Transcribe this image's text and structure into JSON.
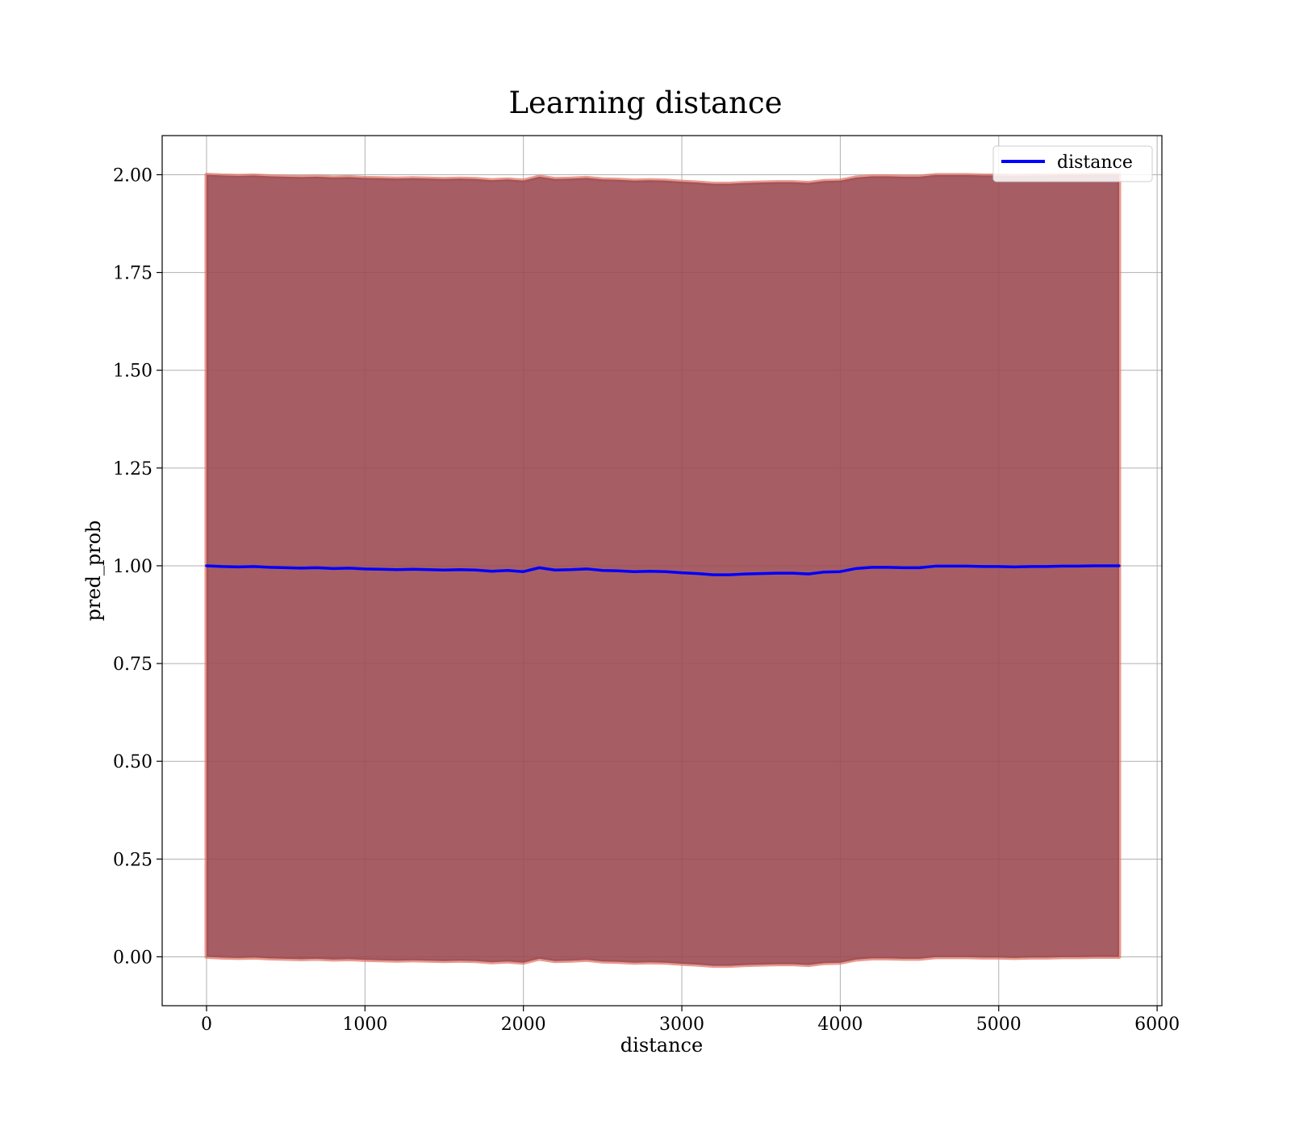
{
  "chart_data": {
    "type": "line",
    "title": "Learning distance",
    "xlabel": "distance",
    "ylabel": "pred_prob",
    "xlim": [
      -280,
      6030
    ],
    "ylim": [
      -0.125,
      2.1
    ],
    "xticks": [
      0,
      1000,
      2000,
      3000,
      4000,
      5000,
      6000
    ],
    "yticks": [
      0.0,
      0.25,
      0.5,
      0.75,
      1.0,
      1.25,
      1.5,
      1.75,
      2.0
    ],
    "xtick_labels": [
      "0",
      "1000",
      "2000",
      "3000",
      "4000",
      "5000",
      "6000"
    ],
    "ytick_labels": [
      "0.00",
      "0.25",
      "0.50",
      "0.75",
      "1.00",
      "1.25",
      "1.50",
      "1.75",
      "2.00"
    ],
    "grid": true,
    "legend": {
      "placement": "top-right",
      "entries": [
        "distance"
      ]
    },
    "colors": {
      "line": "#0000ff",
      "band_inner": "#7a3b4c",
      "band_outer": "#e07060"
    },
    "series": [
      {
        "name": "distance",
        "x": [
          0,
          100,
          200,
          300,
          400,
          500,
          600,
          700,
          800,
          900,
          1000,
          1100,
          1200,
          1300,
          1400,
          1500,
          1600,
          1700,
          1800,
          1900,
          2000,
          2100,
          2200,
          2300,
          2400,
          2500,
          2600,
          2700,
          2800,
          2900,
          3000,
          3100,
          3200,
          3300,
          3400,
          3500,
          3600,
          3700,
          3800,
          3900,
          4000,
          4100,
          4200,
          4300,
          4400,
          4500,
          4600,
          4700,
          4800,
          4900,
          5000,
          5100,
          5200,
          5300,
          5400,
          5500,
          5600,
          5700,
          5760
        ],
        "values": [
          1.0,
          0.998,
          0.997,
          0.998,
          0.996,
          0.995,
          0.994,
          0.995,
          0.993,
          0.994,
          0.992,
          0.991,
          0.99,
          0.991,
          0.99,
          0.989,
          0.99,
          0.989,
          0.986,
          0.988,
          0.985,
          0.995,
          0.989,
          0.99,
          0.992,
          0.988,
          0.987,
          0.985,
          0.986,
          0.985,
          0.982,
          0.98,
          0.977,
          0.977,
          0.979,
          0.98,
          0.981,
          0.981,
          0.979,
          0.984,
          0.985,
          0.993,
          0.996,
          0.996,
          0.995,
          0.995,
          0.999,
          0.999,
          0.999,
          0.998,
          0.998,
          0.997,
          0.998,
          0.998,
          0.999,
          0.999,
          1.0,
          1.0,
          1.0
        ],
        "upper": [
          2.0,
          1.998,
          1.997,
          1.998,
          1.996,
          1.995,
          1.994,
          1.995,
          1.993,
          1.994,
          1.992,
          1.991,
          1.99,
          1.991,
          1.99,
          1.989,
          1.99,
          1.989,
          1.986,
          1.988,
          1.985,
          1.995,
          1.989,
          1.99,
          1.992,
          1.988,
          1.987,
          1.985,
          1.986,
          1.985,
          1.982,
          1.98,
          1.977,
          1.977,
          1.979,
          1.98,
          1.981,
          1.981,
          1.979,
          1.984,
          1.985,
          1.993,
          1.996,
          1.996,
          1.995,
          1.995,
          1.999,
          1.999,
          1.999,
          1.998,
          1.998,
          1.997,
          1.998,
          1.998,
          1.999,
          1.999,
          2.0,
          2.0,
          2.0
        ],
        "lower": [
          0.0,
          -0.002,
          -0.003,
          -0.002,
          -0.004,
          -0.005,
          -0.006,
          -0.005,
          -0.007,
          -0.006,
          -0.008,
          -0.009,
          -0.01,
          -0.009,
          -0.01,
          -0.011,
          -0.01,
          -0.011,
          -0.014,
          -0.012,
          -0.015,
          -0.005,
          -0.011,
          -0.01,
          -0.008,
          -0.012,
          -0.013,
          -0.015,
          -0.014,
          -0.015,
          -0.018,
          -0.02,
          -0.023,
          -0.023,
          -0.021,
          -0.02,
          -0.019,
          -0.019,
          -0.021,
          -0.016,
          -0.015,
          -0.007,
          -0.004,
          -0.004,
          -0.005,
          -0.005,
          -0.001,
          -0.001,
          -0.001,
          -0.002,
          -0.002,
          -0.003,
          -0.002,
          -0.002,
          -0.001,
          -0.001,
          0.0,
          0.0,
          0.0
        ]
      }
    ]
  }
}
